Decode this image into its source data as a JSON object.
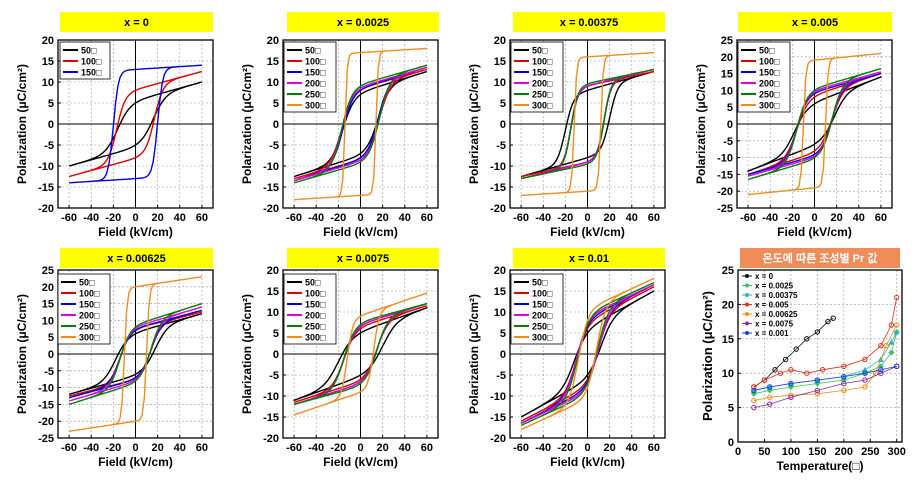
{
  "chart_data": [
    {
      "type": "line",
      "title": "x = 0",
      "xlabel": "Field (kV/cm)",
      "ylabel": "Polarization (μC/cm²)",
      "xlim": [
        -70,
        70
      ],
      "ylim": [
        -20,
        20
      ],
      "xticks": [
        -60,
        -40,
        -20,
        0,
        20,
        40,
        60
      ],
      "yticks": [
        -20,
        -15,
        -10,
        -5,
        0,
        5,
        10,
        15,
        20
      ],
      "legend": [
        {
          "name": "50□",
          "color": "#000000"
        },
        {
          "name": "100□",
          "color": "#e00000"
        },
        {
          "name": "150□",
          "color": "#0000e0"
        }
      ],
      "series": [
        {
          "name": "50□",
          "color": "#000000",
          "pmax": 10,
          "pr": 5,
          "ec": 16,
          "k": 0.09
        },
        {
          "name": "100□",
          "color": "#e00000",
          "pmax": 12.5,
          "pr": 8,
          "ec": 17,
          "k": 0.13
        },
        {
          "name": "150□",
          "color": "#0000e0",
          "pmax": 14,
          "pr": 13,
          "ec": 20,
          "k": 0.22
        }
      ]
    },
    {
      "type": "line",
      "title": "x = 0.0025",
      "xlabel": "Field (kV/cm)",
      "ylabel": "Polarization (μC/cm²)",
      "xlim": [
        -70,
        70
      ],
      "ylim": [
        -20,
        20
      ],
      "xticks": [
        -60,
        -40,
        -20,
        0,
        20,
        40,
        60
      ],
      "yticks": [
        -20,
        -15,
        -10,
        -5,
        0,
        5,
        10,
        15,
        20
      ],
      "legend": [
        {
          "name": "50□",
          "color": "#000000"
        },
        {
          "name": "100□",
          "color": "#e00000"
        },
        {
          "name": "150□",
          "color": "#0000e0"
        },
        {
          "name": "200□",
          "color": "#e000e0"
        },
        {
          "name": "250□",
          "color": "#008000"
        },
        {
          "name": "300□",
          "color": "#f08c1e"
        }
      ],
      "series": [
        {
          "name": "50□",
          "color": "#000000",
          "pmax": 12.5,
          "pr": 7,
          "ec": 16,
          "k": 0.1
        },
        {
          "name": "100□",
          "color": "#e00000",
          "pmax": 13,
          "pr": 8,
          "ec": 17,
          "k": 0.1
        },
        {
          "name": "150□",
          "color": "#0000e0",
          "pmax": 13.5,
          "pr": 8,
          "ec": 16,
          "k": 0.11
        },
        {
          "name": "200□",
          "color": "#e000e0",
          "pmax": 13.5,
          "pr": 8.5,
          "ec": 17,
          "k": 0.11
        },
        {
          "name": "250□",
          "color": "#008000",
          "pmax": 14,
          "pr": 9,
          "ec": 17,
          "k": 0.11
        },
        {
          "name": "300□",
          "color": "#f08c1e",
          "pmax": 18,
          "pr": 17,
          "ec": 14,
          "k": 0.5
        }
      ]
    },
    {
      "type": "line",
      "title": "x = 0.00375",
      "xlabel": "Field (kV/cm)",
      "ylabel": "Polarization (μC/cm²)",
      "xlim": [
        -70,
        70
      ],
      "ylim": [
        -20,
        20
      ],
      "xticks": [
        -60,
        -40,
        -20,
        0,
        20,
        40,
        60
      ],
      "yticks": [
        -20,
        -15,
        -10,
        -5,
        0,
        5,
        10,
        15,
        20
      ],
      "legend": [
        {
          "name": "50□",
          "color": "#000000"
        },
        {
          "name": "100□",
          "color": "#e00000"
        },
        {
          "name": "150□",
          "color": "#0000e0"
        },
        {
          "name": "200□",
          "color": "#e000e0"
        },
        {
          "name": "250□",
          "color": "#008000"
        },
        {
          "name": "300□",
          "color": "#f08c1e"
        }
      ],
      "series": [
        {
          "name": "50□",
          "color": "#000000",
          "pmax": 12.5,
          "pr": 8,
          "ec": 20,
          "k": 0.14
        },
        {
          "name": "100□",
          "color": "#e00000",
          "pmax": 12.5,
          "pr": 9,
          "ec": 15,
          "k": 0.16
        },
        {
          "name": "150□",
          "color": "#0000e0",
          "pmax": 13,
          "pr": 9,
          "ec": 15,
          "k": 0.16
        },
        {
          "name": "200□",
          "color": "#e000e0",
          "pmax": 13,
          "pr": 9,
          "ec": 15,
          "k": 0.16
        },
        {
          "name": "250□",
          "color": "#008000",
          "pmax": 13,
          "pr": 9.5,
          "ec": 15,
          "k": 0.16
        },
        {
          "name": "300□",
          "color": "#f08c1e",
          "pmax": 17,
          "pr": 16,
          "ec": 12,
          "k": 0.45
        }
      ]
    },
    {
      "type": "line",
      "title": "x = 0.005",
      "xlabel": "Field (kV/cm)",
      "ylabel": "Polarization (μC/cm²)",
      "xlim": [
        -70,
        70
      ],
      "ylim": [
        -25,
        25
      ],
      "xticks": [
        -60,
        -40,
        -20,
        0,
        20,
        40,
        60
      ],
      "yticks": [
        -25,
        -20,
        -15,
        -10,
        -5,
        0,
        5,
        10,
        15,
        20,
        25
      ],
      "legend": [
        {
          "name": "50□",
          "color": "#000000"
        },
        {
          "name": "100□",
          "color": "#e00000"
        },
        {
          "name": "150□",
          "color": "#0000e0"
        },
        {
          "name": "200□",
          "color": "#e000e0"
        },
        {
          "name": "250□",
          "color": "#008000"
        },
        {
          "name": "300□",
          "color": "#f08c1e"
        }
      ],
      "series": [
        {
          "name": "50□",
          "color": "#000000",
          "pmax": 14,
          "pr": 6,
          "ec": 18,
          "k": 0.09
        },
        {
          "name": "100□",
          "color": "#e00000",
          "pmax": 15,
          "pr": 8,
          "ec": 16,
          "k": 0.1
        },
        {
          "name": "150□",
          "color": "#0000e0",
          "pmax": 15,
          "pr": 9,
          "ec": 16,
          "k": 0.11
        },
        {
          "name": "200□",
          "color": "#e000e0",
          "pmax": 15.5,
          "pr": 9.5,
          "ec": 16,
          "k": 0.11
        },
        {
          "name": "250□",
          "color": "#008000",
          "pmax": 16.5,
          "pr": 10,
          "ec": 16,
          "k": 0.11
        },
        {
          "name": "300□",
          "color": "#f08c1e",
          "pmax": 21,
          "pr": 19,
          "ec": 10,
          "k": 0.45
        }
      ]
    },
    {
      "type": "line",
      "title": "x = 0.00625",
      "xlabel": "Field (kV/cm)",
      "ylabel": "Polarization (μC/cm²)",
      "xlim": [
        -70,
        70
      ],
      "ylim": [
        -25,
        25
      ],
      "xticks": [
        -60,
        -40,
        -20,
        0,
        20,
        40,
        60
      ],
      "yticks": [
        -25,
        -20,
        -15,
        -10,
        -5,
        0,
        5,
        10,
        15,
        20,
        25
      ],
      "legend": [
        {
          "name": "50□",
          "color": "#000000"
        },
        {
          "name": "100□",
          "color": "#e00000"
        },
        {
          "name": "150□",
          "color": "#0000e0"
        },
        {
          "name": "200□",
          "color": "#e000e0"
        },
        {
          "name": "250□",
          "color": "#008000"
        },
        {
          "name": "300□",
          "color": "#f08c1e"
        }
      ],
      "series": [
        {
          "name": "50□",
          "color": "#000000",
          "pmax": 12,
          "pr": 6,
          "ec": 18,
          "k": 0.09
        },
        {
          "name": "100□",
          "color": "#e00000",
          "pmax": 12.5,
          "pr": 7,
          "ec": 14,
          "k": 0.11
        },
        {
          "name": "150□",
          "color": "#0000e0",
          "pmax": 13,
          "pr": 7,
          "ec": 14,
          "k": 0.11
        },
        {
          "name": "200□",
          "color": "#e000e0",
          "pmax": 14,
          "pr": 7.5,
          "ec": 14,
          "k": 0.11
        },
        {
          "name": "250□",
          "color": "#008000",
          "pmax": 15,
          "pr": 8,
          "ec": 14,
          "k": 0.11
        },
        {
          "name": "300□",
          "color": "#f08c1e",
          "pmax": 23,
          "pr": 20,
          "ec": 10,
          "k": 0.4
        }
      ]
    },
    {
      "type": "line",
      "title": "x = 0.0075",
      "xlabel": "Field (kV/cm)",
      "ylabel": "Polarization (μC/cm²)",
      "xlim": [
        -70,
        70
      ],
      "ylim": [
        -20,
        20
      ],
      "xticks": [
        -60,
        -40,
        -20,
        0,
        20,
        40,
        60
      ],
      "yticks": [
        -20,
        -15,
        -10,
        -5,
        0,
        5,
        10,
        15,
        20
      ],
      "legend": [
        {
          "name": "50□",
          "color": "#000000"
        },
        {
          "name": "100□",
          "color": "#e00000"
        },
        {
          "name": "150□",
          "color": "#0000e0"
        },
        {
          "name": "200□",
          "color": "#e000e0"
        },
        {
          "name": "250□",
          "color": "#008000"
        },
        {
          "name": "300□",
          "color": "#f08c1e"
        }
      ],
      "series": [
        {
          "name": "50□",
          "color": "#000000",
          "pmax": 11,
          "pr": 5,
          "ec": 20,
          "k": 0.08
        },
        {
          "name": "100□",
          "color": "#e00000",
          "pmax": 11.5,
          "pr": 6,
          "ec": 15,
          "k": 0.1
        },
        {
          "name": "150□",
          "color": "#0000e0",
          "pmax": 12,
          "pr": 6.5,
          "ec": 15,
          "k": 0.1
        },
        {
          "name": "200□",
          "color": "#e000e0",
          "pmax": 12,
          "pr": 6.5,
          "ec": 15,
          "k": 0.1
        },
        {
          "name": "250□",
          "color": "#008000",
          "pmax": 12,
          "pr": 7,
          "ec": 15,
          "k": 0.1
        },
        {
          "name": "300□",
          "color": "#f08c1e",
          "pmax": 14.5,
          "pr": 9,
          "ec": 12,
          "k": 0.2
        }
      ]
    },
    {
      "type": "line",
      "title": "x = 0.01",
      "xlabel": "Field (kV/cm)",
      "ylabel": "Polarization (μC/cm²)",
      "xlim": [
        -70,
        70
      ],
      "ylim": [
        -20,
        20
      ],
      "xticks": [
        -60,
        -40,
        -20,
        0,
        20,
        40,
        60
      ],
      "yticks": [
        -20,
        -15,
        -10,
        -5,
        0,
        5,
        10,
        15,
        20
      ],
      "legend": [
        {
          "name": "50□",
          "color": "#000000"
        },
        {
          "name": "100□",
          "color": "#e00000"
        },
        {
          "name": "150□",
          "color": "#0000e0"
        },
        {
          "name": "200□",
          "color": "#e000e0"
        },
        {
          "name": "250□",
          "color": "#008000"
        },
        {
          "name": "300□",
          "color": "#f08c1e"
        }
      ],
      "series": [
        {
          "name": "50□",
          "color": "#000000",
          "pmax": 15,
          "pr": 5,
          "ec": 12,
          "k": 0.09
        },
        {
          "name": "100□",
          "color": "#e00000",
          "pmax": 16,
          "pr": 6,
          "ec": 10,
          "k": 0.1
        },
        {
          "name": "150□",
          "color": "#0000e0",
          "pmax": 16.5,
          "pr": 6.5,
          "ec": 10,
          "k": 0.1
        },
        {
          "name": "200□",
          "color": "#e000e0",
          "pmax": 16.5,
          "pr": 7,
          "ec": 10,
          "k": 0.1
        },
        {
          "name": "250□",
          "color": "#008000",
          "pmax": 17,
          "pr": 7,
          "ec": 9,
          "k": 0.1
        },
        {
          "name": "300□",
          "color": "#f08c1e",
          "pmax": 18,
          "pr": 8,
          "ec": 8,
          "k": 0.12
        }
      ]
    },
    {
      "type": "scatter",
      "title": "온도에 따른 조성별 Pr 값",
      "xlabel": "Temperature(□)",
      "ylabel": "Polarization (μC/cm²)",
      "xlim": [
        0,
        310
      ],
      "ylim": [
        0,
        25
      ],
      "xticks": [
        0,
        50,
        100,
        150,
        200,
        250,
        300
      ],
      "yticks": [
        0,
        5,
        10,
        15,
        20,
        25
      ],
      "series": [
        {
          "name": "x = 0",
          "color": "#111111",
          "marker": "circle",
          "points": [
            [
              30,
              8
            ],
            [
              50,
              9
            ],
            [
              70,
              10.5
            ],
            [
              90,
              12
            ],
            [
              110,
              13.5
            ],
            [
              130,
              15
            ],
            [
              150,
              16
            ],
            [
              170,
              17.5
            ],
            [
              180,
              18
            ]
          ]
        },
        {
          "name": "x = 0.0025",
          "color": "#32c85a",
          "marker": "diamond",
          "points": [
            [
              30,
              7
            ],
            [
              60,
              7.5
            ],
            [
              100,
              8
            ],
            [
              150,
              8.5
            ],
            [
              200,
              9
            ],
            [
              240,
              10
            ],
            [
              270,
              11
            ],
            [
              290,
              13
            ],
            [
              300,
              16
            ]
          ]
        },
        {
          "name": "x = 0.00375",
          "color": "#28b4c8",
          "marker": "triangle",
          "points": [
            [
              30,
              7.5
            ],
            [
              60,
              8
            ],
            [
              100,
              8.5
            ],
            [
              150,
              9
            ],
            [
              200,
              9.5
            ],
            [
              240,
              10.5
            ],
            [
              270,
              12
            ],
            [
              290,
              14.5
            ],
            [
              300,
              16
            ]
          ]
        },
        {
          "name": "x = 0.005",
          "color": "#e03020",
          "marker": "circle",
          "points": [
            [
              30,
              8
            ],
            [
              50,
              9
            ],
            [
              80,
              10
            ],
            [
              100,
              10.5
            ],
            [
              130,
              10
            ],
            [
              160,
              10.5
            ],
            [
              200,
              11
            ],
            [
              240,
              12
            ],
            [
              270,
              14
            ],
            [
              290,
              17
            ],
            [
              300,
              21
            ]
          ]
        },
        {
          "name": "x = 0.00625",
          "color": "#f08c1e",
          "marker": "circle",
          "points": [
            [
              30,
              6
            ],
            [
              60,
              6.5
            ],
            [
              100,
              6.8
            ],
            [
              150,
              7
            ],
            [
              200,
              7.5
            ],
            [
              240,
              8
            ],
            [
              260,
              10
            ],
            [
              280,
              14
            ],
            [
              300,
              17
            ]
          ]
        },
        {
          "name": "x = 0.0075",
          "color": "#8c28a0",
          "marker": "circle",
          "points": [
            [
              30,
              5
            ],
            [
              60,
              5.5
            ],
            [
              100,
              6.5
            ],
            [
              150,
              7.5
            ],
            [
              200,
              8.5
            ],
            [
              240,
              9
            ],
            [
              270,
              10
            ],
            [
              300,
              11
            ]
          ]
        },
        {
          "name": "x = 0.001",
          "color": "#1e3cdc",
          "marker": "circle",
          "points": [
            [
              30,
              7.5
            ],
            [
              60,
              8
            ],
            [
              100,
              8.5
            ],
            [
              150,
              9
            ],
            [
              200,
              9.5
            ],
            [
              240,
              10
            ],
            [
              270,
              10.5
            ],
            [
              300,
              11
            ]
          ]
        }
      ]
    }
  ]
}
